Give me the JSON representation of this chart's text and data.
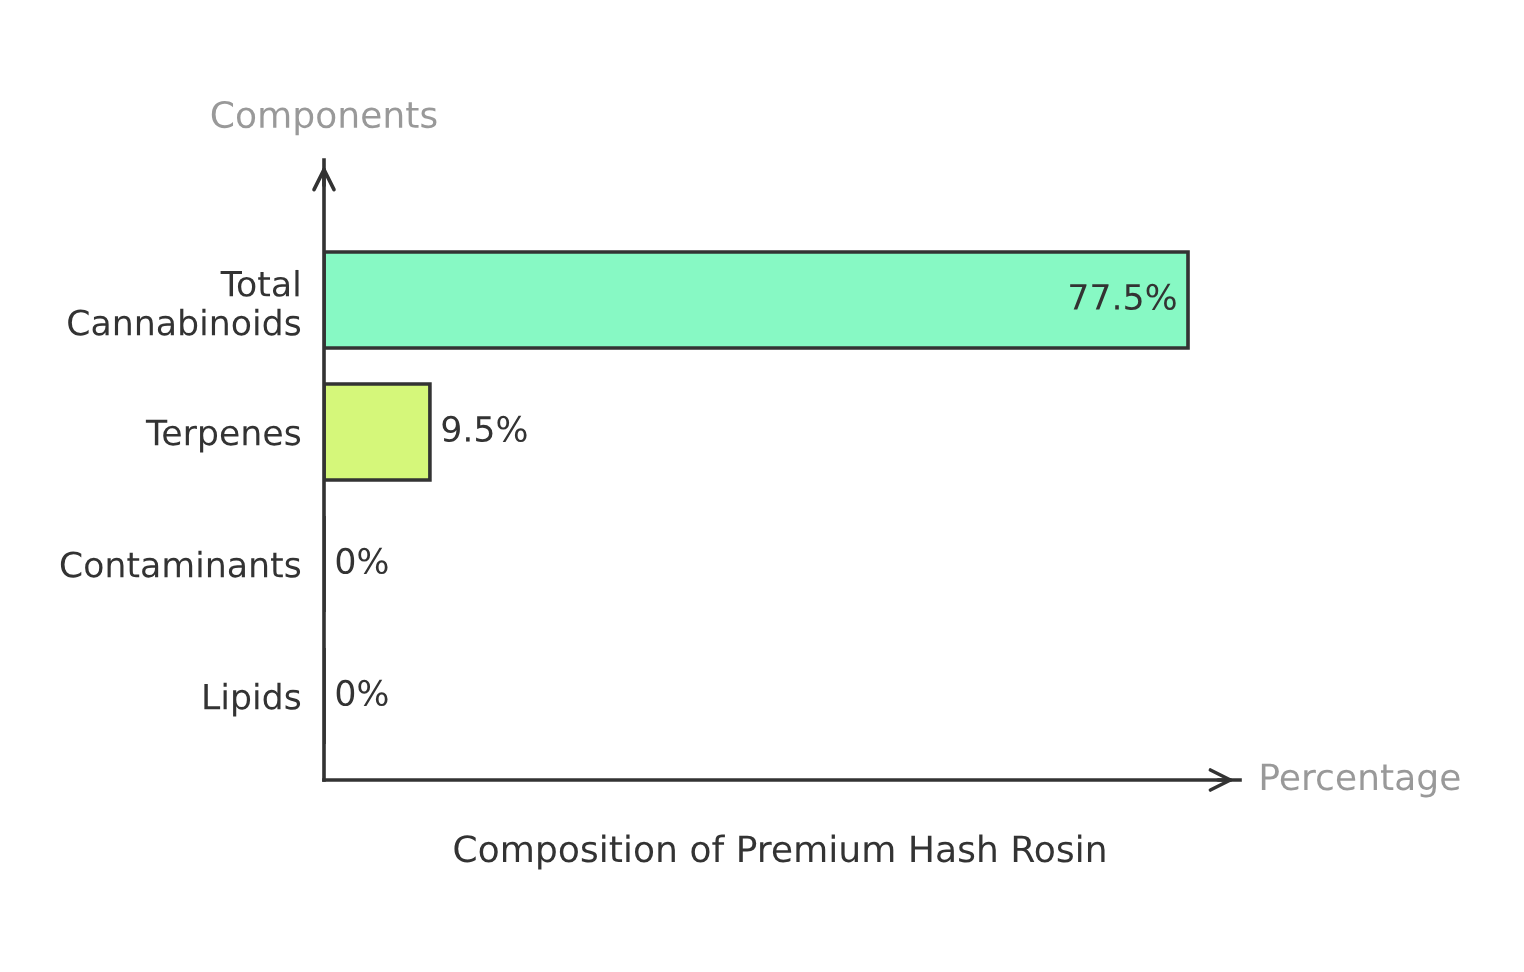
{
  "chart_data": {
    "type": "bar",
    "orientation": "horizontal",
    "title": "Composition of Premium Hash Rosin",
    "xlabel": "Percentage",
    "ylabel": "Components",
    "categories": [
      "Total\nCannabinoids",
      "Terpenes",
      "Contaminants",
      "Lipids"
    ],
    "values": [
      77.5,
      9.5,
      0,
      0
    ],
    "colors": [
      "#87f9c4",
      "#d5f77a",
      "#d5f77a",
      "#d5f77a"
    ],
    "value_labels": [
      "77.5%",
      "9.5%",
      "0%",
      "0%"
    ],
    "grid": false,
    "legend": false
  }
}
